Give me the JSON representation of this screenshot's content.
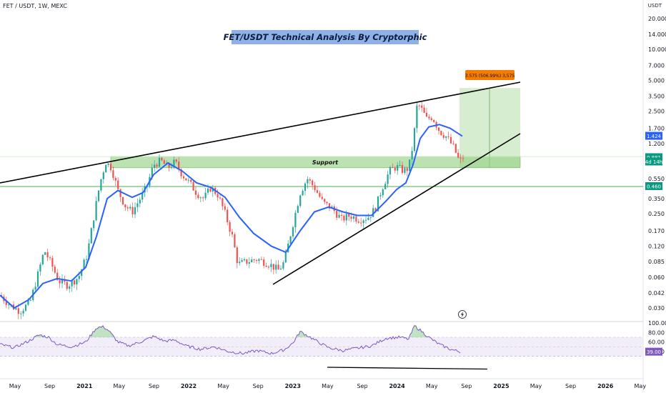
{
  "header": {
    "symbol": "FET / USDT, 1W, MEXC",
    "currency": "USDT",
    "title": "FET/USDT Technical Analysis By Cryptorphic"
  },
  "chart_data": {
    "type": "candlestick",
    "price_axis": {
      "scale": "log",
      "ticks": [
        "20.000",
        "14.000",
        "10.000",
        "7.000",
        "5.000",
        "3.500",
        "2.500",
        "1.700",
        "1.200",
        "0.550",
        "0.350",
        "0.250",
        "0.170",
        "0.120",
        "0.085",
        "0.060",
        "0.042",
        "0.030"
      ],
      "tick_values": [
        20,
        14,
        10,
        7,
        5,
        3.5,
        2.5,
        1.7,
        1.2,
        0.55,
        0.35,
        0.25,
        0.17,
        0.12,
        0.085,
        0.06,
        0.042,
        0.03
      ]
    },
    "time_axis": {
      "labels": [
        "May",
        "Sep",
        "2021",
        "May",
        "Sep",
        "2022",
        "May",
        "Sep",
        "2023",
        "May",
        "Sep",
        "2024",
        "May",
        "Sep",
        "2025",
        "May",
        "Sep",
        "2026",
        "May"
      ]
    },
    "price_tags": [
      {
        "label": "1.424",
        "value": 1.424,
        "color": "#2962ff"
      },
      {
        "label": "0.881",
        "value": 0.881,
        "color": "#089981"
      },
      {
        "label": "4d 14h",
        "value": 0.8,
        "color": "#089981"
      },
      {
        "label": "0.460",
        "value": 0.46,
        "color": "#089981"
      }
    ],
    "support_zone": {
      "label": "Support",
      "top": 0.9,
      "bottom": 0.7
    },
    "horizontal_level": 0.46,
    "target_box": {
      "label": "3.575 (506.99%) 3,575",
      "top": 4.2,
      "bottom": 0.7
    },
    "moving_average_color": "#2962ff",
    "rsi": {
      "ticks": [
        "100.00",
        "80.00",
        "60.00",
        "40.00"
      ],
      "tick_values": [
        100,
        80,
        60,
        40
      ],
      "current": "39.00",
      "current_value": 39,
      "overbought": 70,
      "oversold": 30
    }
  }
}
